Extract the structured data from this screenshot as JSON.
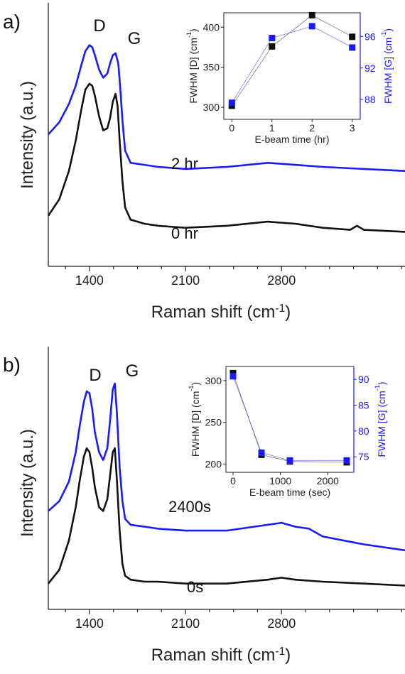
{
  "chart_data": [
    {
      "type": "line",
      "panel_label": "a)",
      "xlabel": "Raman shift (cm",
      "xlabel_sup": "-1",
      "xlabel_end": ")",
      "ylabel": "Intensity (a.u.)",
      "xlim": [
        1100,
        3700
      ],
      "xticks": [
        1400,
        2100,
        2800
      ],
      "peak_labels": [
        "D",
        "G"
      ],
      "series": [
        {
          "name": "2 hr",
          "color": "#1a1aff",
          "x": [
            1100,
            1180,
            1250,
            1300,
            1340,
            1370,
            1400,
            1420,
            1440,
            1470,
            1500,
            1530,
            1550,
            1570,
            1590,
            1610,
            1625,
            1640,
            1660,
            1700,
            1800,
            1900,
            2100,
            2400,
            2700,
            2900,
            3100,
            3400,
            3700
          ],
          "y": [
            0.58,
            0.64,
            0.73,
            0.82,
            0.92,
            0.99,
            1.02,
            1.01,
            0.97,
            0.9,
            0.86,
            0.88,
            0.93,
            0.97,
            0.98,
            0.93,
            0.8,
            0.65,
            0.5,
            0.44,
            0.43,
            0.42,
            0.41,
            0.42,
            0.44,
            0.43,
            0.42,
            0.41,
            0.4
          ]
        },
        {
          "name": "0 hr",
          "color": "#111111",
          "x": [
            1100,
            1180,
            1250,
            1300,
            1340,
            1370,
            1400,
            1420,
            1440,
            1470,
            1500,
            1530,
            1550,
            1570,
            1590,
            1605,
            1620,
            1640,
            1660,
            1700,
            1800,
            1900,
            2100,
            2400,
            2700,
            2900,
            3100,
            3300,
            3350,
            3400,
            3700
          ],
          "y": [
            0.18,
            0.26,
            0.4,
            0.55,
            0.7,
            0.8,
            0.83,
            0.82,
            0.77,
            0.67,
            0.6,
            0.61,
            0.66,
            0.74,
            0.78,
            0.72,
            0.55,
            0.35,
            0.22,
            0.16,
            0.14,
            0.13,
            0.12,
            0.13,
            0.15,
            0.14,
            0.12,
            0.11,
            0.13,
            0.11,
            0.1
          ]
        }
      ],
      "inset": {
        "xlabel": "E-beam time (hr)",
        "ylabel_left": "FWHM [D] (cm",
        "ylabel_right": "FWHM [G] (cm",
        "ylabel_sup": "-1",
        "ylabel_end": ")",
        "x": [
          0,
          1,
          2,
          3
        ],
        "xticks": [
          0,
          1,
          2,
          3
        ],
        "xlim": [
          -0.2,
          3.2
        ],
        "left": {
          "name": "FWHM [D]",
          "color": "#111111",
          "ylim": [
            285,
            418
          ],
          "yticks": [
            300,
            350,
            400
          ],
          "values": [
            302,
            376,
            415,
            388
          ]
        },
        "right": {
          "name": "FWHM [G]",
          "color": "#1a1aff",
          "ylim": [
            85.5,
            99
          ],
          "yticks": [
            88,
            92,
            96
          ],
          "values": [
            87.6,
            95.8,
            97.3,
            94.6
          ]
        }
      }
    },
    {
      "type": "line",
      "panel_label": "b)",
      "xlabel": "Raman shift (cm",
      "xlabel_sup": "-1",
      "xlabel_end": ")",
      "ylabel": "Intensity (a.u.)",
      "xlim": [
        1100,
        3700
      ],
      "xticks": [
        1400,
        2100,
        2800
      ],
      "peak_labels": [
        "D",
        "G"
      ],
      "series": [
        {
          "name": "2400s",
          "color": "#1a1aff",
          "x": [
            1100,
            1180,
            1250,
            1300,
            1330,
            1360,
            1380,
            1400,
            1420,
            1440,
            1470,
            1500,
            1530,
            1550,
            1570,
            1585,
            1600,
            1620,
            1640,
            1660,
            1700,
            1800,
            1900,
            2100,
            2400,
            2700,
            2800,
            2900,
            3000,
            3100,
            3400,
            3700
          ],
          "y": [
            0.4,
            0.45,
            0.55,
            0.7,
            0.84,
            0.96,
            1.01,
            1.0,
            0.92,
            0.8,
            0.7,
            0.66,
            0.72,
            0.86,
            1.02,
            1.05,
            0.9,
            0.62,
            0.45,
            0.36,
            0.33,
            0.32,
            0.31,
            0.3,
            0.3,
            0.33,
            0.34,
            0.32,
            0.31,
            0.27,
            0.23,
            0.2
          ]
        },
        {
          "name": "0s",
          "color": "#111111",
          "x": [
            1100,
            1180,
            1250,
            1300,
            1330,
            1360,
            1380,
            1400,
            1420,
            1440,
            1470,
            1500,
            1530,
            1550,
            1570,
            1585,
            1600,
            1620,
            1640,
            1660,
            1700,
            1800,
            1900,
            2100,
            2400,
            2700,
            2800,
            2900,
            3100,
            3400,
            3700
          ],
          "y": [
            0.03,
            0.1,
            0.25,
            0.42,
            0.56,
            0.68,
            0.72,
            0.7,
            0.62,
            0.52,
            0.42,
            0.4,
            0.46,
            0.58,
            0.7,
            0.72,
            0.56,
            0.3,
            0.13,
            0.07,
            0.05,
            0.04,
            0.04,
            0.03,
            0.03,
            0.05,
            0.06,
            0.05,
            0.04,
            0.03,
            0.02
          ]
        }
      ],
      "inset": {
        "xlabel": "E-beam time (sec)",
        "ylabel_left": "FWHM [D] (cm",
        "ylabel_right": "FWHM [G] (cm",
        "ylabel_sup": "-1",
        "ylabel_end": ")",
        "x": [
          0,
          600,
          1200,
          2400
        ],
        "xticks": [
          0,
          1000,
          2000
        ],
        "xlim": [
          -150,
          2550
        ],
        "left": {
          "name": "FWHM [D]",
          "color": "#111111",
          "ylim": [
            190,
            317
          ],
          "yticks": [
            200,
            250,
            300
          ],
          "values": [
            309,
            211,
            203,
            202
          ]
        },
        "right": {
          "name": "FWHM [G]",
          "color": "#1a1aff",
          "ylim": [
            72,
            92.5
          ],
          "yticks": [
            75,
            80,
            85,
            90
          ],
          "values": [
            90.6,
            75.8,
            74.3,
            74.3
          ]
        }
      }
    }
  ]
}
